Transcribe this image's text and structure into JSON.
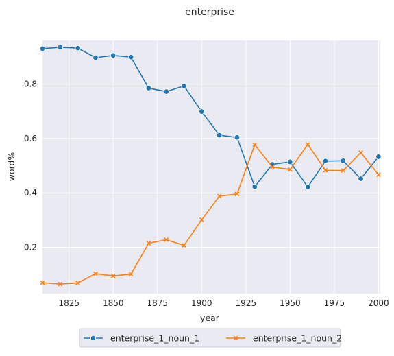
{
  "chart_data": {
    "type": "line",
    "title": "enterprise",
    "xlabel": "year",
    "ylabel": "word%",
    "xlim": [
      1810,
      2001
    ],
    "ylim": [
      0.03,
      0.96
    ],
    "xticks": [
      1825,
      1850,
      1875,
      1900,
      1925,
      1950,
      1975,
      2000
    ],
    "yticks": [
      0.2,
      0.4,
      0.6,
      0.8
    ],
    "grid": true,
    "legend_placement": "bottom-center",
    "x": [
      1810,
      1820,
      1830,
      1840,
      1850,
      1860,
      1870,
      1880,
      1890,
      1900,
      1910,
      1920,
      1930,
      1940,
      1950,
      1960,
      1970,
      1980,
      1990,
      2000
    ],
    "series": [
      {
        "name": "enterprise_1_noun_1",
        "color": "#1f77b4",
        "marker": "circle",
        "values": [
          0.93,
          0.935,
          0.932,
          0.897,
          0.905,
          0.899,
          0.785,
          0.772,
          0.793,
          0.699,
          0.612,
          0.604,
          0.423,
          0.505,
          0.514,
          0.422,
          0.517,
          0.518,
          0.452,
          0.533
        ]
      },
      {
        "name": "enterprise_1_noun_2",
        "color": "#ff7f0e",
        "marker": "x",
        "values": [
          0.07,
          0.065,
          0.069,
          0.103,
          0.095,
          0.101,
          0.215,
          0.228,
          0.207,
          0.301,
          0.388,
          0.396,
          0.577,
          0.495,
          0.486,
          0.578,
          0.483,
          0.482,
          0.548,
          0.467
        ]
      }
    ]
  }
}
